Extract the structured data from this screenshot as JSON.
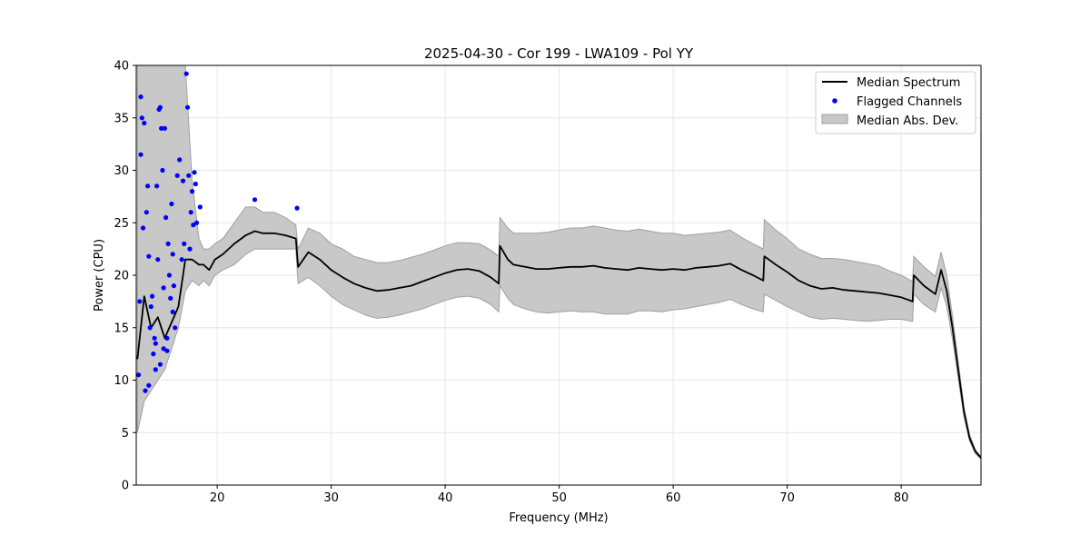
{
  "chart_data": {
    "type": "line",
    "title": "2025-04-30 - Cor 199 - LWA109 - Pol YY",
    "xlabel": "Frequency (MHz)",
    "ylabel": "Power (CPU)",
    "xlim": [
      12.9,
      87.0
    ],
    "ylim": [
      0,
      40
    ],
    "xticks": [
      20,
      30,
      40,
      50,
      60,
      70,
      80
    ],
    "yticks": [
      0,
      5,
      10,
      15,
      20,
      25,
      30,
      35,
      40
    ],
    "grid": true,
    "legend_position": "top-right",
    "legend": {
      "median_label": "Median Spectrum",
      "flagged_label": "Flagged Channels",
      "mad_label": "Median Abs. Dev."
    },
    "colors": {
      "median": "#000000",
      "flagged": "#0000ff",
      "mad_fill": "#c8c8c8",
      "mad_edge": "#a0a0a0"
    },
    "series": [
      {
        "name": "Median Spectrum",
        "kind": "line",
        "x": [
          13.0,
          13.6,
          14.2,
          14.8,
          15.4,
          16.0,
          16.6,
          17.2,
          17.8,
          18.4,
          18.8,
          19.3,
          19.8,
          20.5,
          21.5,
          22.5,
          23.3,
          24.0,
          25.0,
          26.0,
          26.9,
          27.1,
          28.0,
          29.0,
          30.0,
          31.0,
          32.0,
          33.0,
          34.0,
          35.0,
          36.0,
          37.0,
          38.0,
          39.0,
          40.0,
          41.0,
          42.0,
          43.0,
          44.0,
          44.7,
          44.8,
          45.5,
          46.0,
          47.0,
          48.0,
          49.0,
          50.0,
          51.0,
          52.0,
          53.0,
          54.0,
          55.0,
          56.0,
          57.0,
          58.0,
          59.0,
          60.0,
          61.0,
          62.0,
          63.0,
          64.0,
          65.0,
          66.0,
          67.0,
          67.9,
          68.0,
          69.0,
          70.0,
          71.0,
          72.0,
          73.0,
          74.0,
          75.0,
          76.0,
          77.0,
          78.0,
          79.0,
          80.0,
          81.0,
          81.1,
          82.0,
          83.0,
          83.5,
          84.0,
          84.5,
          85.0,
          85.5,
          86.0,
          86.5,
          87.0
        ],
        "y": [
          12.0,
          18.0,
          15.0,
          16.0,
          14.0,
          15.5,
          17.0,
          21.5,
          21.5,
          21.0,
          21.0,
          20.5,
          21.5,
          22.0,
          23.0,
          23.8,
          24.2,
          24.0,
          24.0,
          23.8,
          23.5,
          20.8,
          22.2,
          21.5,
          20.5,
          19.8,
          19.2,
          18.8,
          18.5,
          18.6,
          18.8,
          19.0,
          19.4,
          19.8,
          20.2,
          20.5,
          20.6,
          20.4,
          19.8,
          19.2,
          22.8,
          21.5,
          21.0,
          20.8,
          20.6,
          20.6,
          20.7,
          20.8,
          20.8,
          20.9,
          20.7,
          20.6,
          20.5,
          20.7,
          20.6,
          20.5,
          20.6,
          20.5,
          20.7,
          20.8,
          20.9,
          21.1,
          20.5,
          20.0,
          19.5,
          21.8,
          21.0,
          20.3,
          19.5,
          19.0,
          18.7,
          18.8,
          18.6,
          18.5,
          18.4,
          18.3,
          18.1,
          17.9,
          17.5,
          20.0,
          19.0,
          18.2,
          20.5,
          18.5,
          15.0,
          11.0,
          7.0,
          4.5,
          3.2,
          2.6
        ]
      },
      {
        "name": "Median Abs. Dev.",
        "kind": "band",
        "x": [
          13.0,
          13.6,
          14.2,
          14.8,
          15.4,
          16.0,
          16.6,
          17.2,
          17.8,
          18.4,
          18.8,
          19.3,
          19.8,
          20.5,
          21.5,
          22.5,
          23.3,
          24.0,
          25.0,
          26.0,
          26.9,
          27.1,
          28.0,
          29.0,
          30.0,
          31.0,
          32.0,
          33.0,
          34.0,
          35.0,
          36.0,
          37.0,
          38.0,
          39.0,
          40.0,
          41.0,
          42.0,
          43.0,
          44.0,
          44.7,
          44.8,
          45.5,
          46.0,
          47.0,
          48.0,
          49.0,
          50.0,
          51.0,
          52.0,
          53.0,
          54.0,
          55.0,
          56.0,
          57.0,
          58.0,
          59.0,
          60.0,
          61.0,
          62.0,
          63.0,
          64.0,
          65.0,
          66.0,
          67.0,
          67.9,
          68.0,
          69.0,
          70.0,
          71.0,
          72.0,
          73.0,
          74.0,
          75.0,
          76.0,
          77.0,
          78.0,
          79.0,
          80.0,
          81.0,
          81.1,
          82.0,
          83.0,
          83.5,
          84.0,
          84.5,
          85.0,
          85.5,
          86.0,
          86.5,
          87.0
        ],
        "y_low": [
          5.0,
          8.0,
          9.0,
          10.0,
          11.0,
          13.0,
          15.0,
          18.5,
          19.5,
          19.0,
          19.5,
          19.0,
          20.0,
          20.5,
          21.0,
          22.0,
          22.5,
          22.5,
          22.5,
          22.5,
          22.5,
          19.2,
          19.8,
          19.0,
          18.0,
          17.2,
          16.7,
          16.2,
          15.9,
          16.0,
          16.2,
          16.5,
          16.8,
          17.2,
          17.6,
          17.9,
          18.0,
          17.8,
          17.2,
          16.5,
          19.0,
          17.8,
          17.2,
          16.8,
          16.5,
          16.4,
          16.5,
          16.6,
          16.5,
          16.5,
          16.3,
          16.3,
          16.3,
          16.6,
          16.6,
          16.5,
          16.7,
          16.8,
          17.0,
          17.2,
          17.4,
          17.7,
          17.2,
          16.8,
          16.5,
          18.2,
          17.6,
          17.0,
          16.5,
          16.0,
          15.8,
          15.9,
          15.8,
          15.7,
          15.6,
          15.7,
          15.8,
          15.8,
          15.6,
          18.2,
          17.2,
          16.5,
          18.8,
          17.0,
          13.9,
          10.2,
          6.5,
          4.2,
          3.0,
          2.5
        ],
        "y_high": [
          40.0,
          40.0,
          40.0,
          40.0,
          40.0,
          40.0,
          40.0,
          40.0,
          29.0,
          23.5,
          22.5,
          22.5,
          23.0,
          23.5,
          25.0,
          26.5,
          26.5,
          26.0,
          26.0,
          25.5,
          24.8,
          22.5,
          24.5,
          24.0,
          23.0,
          22.5,
          21.8,
          21.5,
          21.2,
          21.2,
          21.4,
          21.7,
          22.0,
          22.4,
          22.8,
          23.1,
          23.1,
          23.0,
          22.4,
          21.8,
          25.5,
          24.5,
          24.0,
          24.0,
          24.0,
          24.1,
          24.3,
          24.5,
          24.5,
          24.7,
          24.5,
          24.3,
          24.2,
          24.4,
          24.2,
          24.0,
          24.0,
          23.8,
          23.9,
          24.0,
          24.1,
          24.3,
          23.6,
          23.0,
          22.5,
          25.3,
          24.3,
          23.5,
          22.5,
          22.0,
          21.6,
          21.6,
          21.5,
          21.3,
          21.1,
          20.9,
          20.4,
          20.0,
          19.4,
          21.8,
          20.8,
          19.9,
          22.2,
          20.0,
          16.1,
          11.8,
          7.5,
          4.8,
          3.4,
          2.7
        ]
      },
      {
        "name": "Flagged Channels",
        "kind": "scatter",
        "x": [
          13.1,
          13.2,
          13.3,
          13.4,
          13.5,
          13.6,
          13.8,
          13.9,
          14.0,
          14.1,
          14.2,
          14.3,
          14.4,
          14.5,
          14.6,
          14.7,
          14.8,
          14.9,
          15.0,
          15.1,
          15.2,
          15.3,
          15.4,
          15.5,
          15.6,
          15.7,
          15.8,
          15.9,
          16.0,
          16.1,
          16.2,
          16.3,
          16.5,
          16.7,
          16.9,
          17.0,
          17.1,
          17.3,
          17.4,
          17.5,
          17.6,
          17.7,
          17.8,
          17.9,
          18.0,
          18.1,
          18.2,
          18.5,
          13.3,
          13.7,
          14.0,
          14.6,
          15.0,
          15.3,
          15.6,
          16.1,
          23.3,
          27.0
        ],
        "y": [
          10.5,
          17.5,
          37.0,
          35.0,
          24.5,
          34.5,
          26.0,
          28.5,
          21.8,
          15.0,
          17.0,
          18.0,
          12.5,
          14.0,
          11.0,
          28.5,
          21.5,
          35.8,
          36.0,
          34.0,
          30.0,
          13.0,
          34.0,
          25.5,
          14.0,
          23.0,
          20.0,
          17.8,
          26.8,
          22.0,
          19.0,
          15.0,
          29.5,
          31.0,
          21.5,
          29.0,
          23.0,
          39.2,
          36.0,
          29.5,
          22.5,
          26.0,
          28.0,
          24.8,
          29.8,
          28.7,
          25.0,
          26.5,
          31.5,
          9.0,
          9.5,
          13.5,
          11.5,
          18.8,
          12.8,
          16.5,
          27.2,
          26.4
        ]
      }
    ]
  }
}
